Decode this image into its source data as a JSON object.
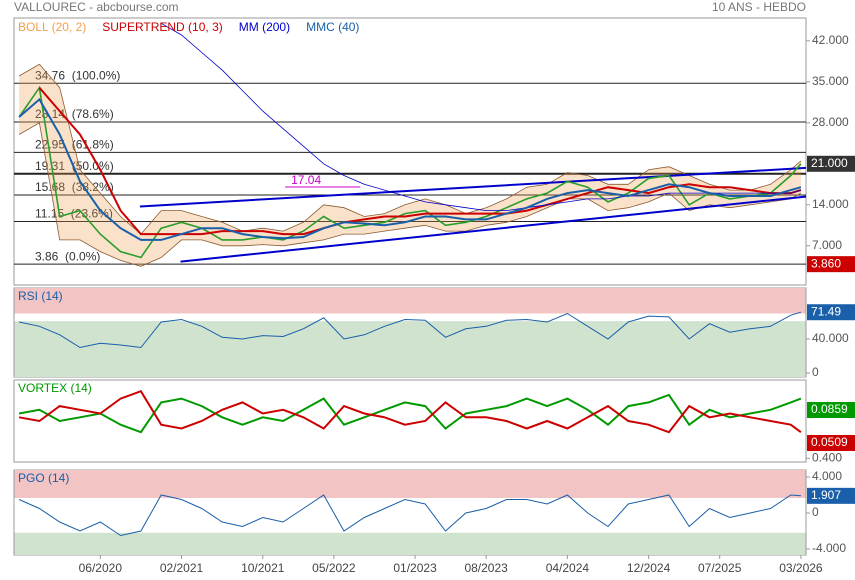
{
  "header": {
    "title": "VALLOUREC - abcbourse.com",
    "period": "10 ANS - HEBDO"
  },
  "chart_data": [
    {
      "type": "line",
      "x": [
        -3,
        -1,
        1,
        3,
        5,
        7,
        9,
        11,
        13,
        15,
        17,
        19,
        21,
        23,
        25,
        27,
        29,
        31,
        33,
        35,
        37,
        39,
        41,
        43,
        45,
        47,
        49,
        51,
        53,
        55,
        57,
        59,
        61,
        63,
        65,
        67,
        69,
        71,
        73,
        74
      ],
      "xlim": [
        -3.5,
        74.5
      ],
      "xticks": [
        {
          "value": 5,
          "label": "06/2020"
        },
        {
          "value": 13,
          "label": "02/2021"
        },
        {
          "value": 21,
          "label": "10/2021"
        },
        {
          "value": 28,
          "label": "05/2022"
        },
        {
          "value": 36,
          "label": "01/2023"
        },
        {
          "value": 43,
          "label": "08/2023"
        },
        {
          "value": 51,
          "label": "04/2024"
        },
        {
          "value": 59,
          "label": "12/2024"
        },
        {
          "value": 66,
          "label": "07/2025"
        },
        {
          "value": 74,
          "label": "03/2026"
        }
      ],
      "ylim": [
        0.3,
        45.9
      ],
      "yticks": [
        {
          "value": 42,
          "label": "42.000"
        },
        {
          "value": 35,
          "label": "35.000"
        },
        {
          "value": 28,
          "label": "28.000"
        },
        {
          "value": 14,
          "label": "14.000"
        },
        {
          "value": 7,
          "label": "7.000"
        }
      ],
      "color": "#2a9d2a",
      "values": [
        29,
        34,
        12,
        13,
        9,
        6,
        5,
        10,
        11,
        10,
        8,
        8,
        8.5,
        8,
        9.5,
        12,
        10,
        10.5,
        11,
        12.5,
        13,
        10.5,
        11,
        12,
        13.5,
        15,
        16,
        18,
        17,
        14.5,
        16,
        18.5,
        19,
        14,
        16,
        15,
        15.5,
        16,
        19,
        21
      ],
      "last_label": "21.000",
      "low_label": "3.860",
      "series": [
        {
          "name": "BOLL (20, 2)",
          "color": "#f0a050",
          "upper": [
            36,
            38,
            34,
            20,
            16,
            12,
            9,
            13,
            13,
            12,
            11,
            9.5,
            10,
            9.5,
            11,
            14,
            13.5,
            12,
            12.5,
            14,
            15,
            14,
            12.5,
            13.5,
            15,
            17,
            17.5,
            19.5,
            19,
            17.5,
            17.5,
            20,
            20.5,
            19,
            17.5,
            16.5,
            16.5,
            17.5,
            20,
            21.5
          ],
          "lower": [
            26,
            28,
            8,
            8,
            6,
            4.5,
            3.5,
            5,
            8,
            8,
            7,
            7,
            7.2,
            7,
            7.5,
            8,
            9,
            9,
            9.5,
            10,
            10.5,
            9.5,
            9.5,
            10.5,
            11,
            12,
            13.5,
            15,
            15,
            13,
            13.5,
            14.5,
            16,
            13,
            14,
            13.5,
            14,
            14.5,
            15,
            16
          ]
        },
        {
          "name": "SUPERTREND (10, 3)",
          "color": "#cc0000",
          "values": [
            null,
            34,
            30,
            26,
            20,
            13,
            9,
            9,
            9,
            9,
            9.5,
            9.5,
            9.5,
            9,
            9,
            10,
            11,
            11.5,
            12,
            12,
            12.5,
            12.5,
            12.5,
            12.5,
            12.5,
            13,
            14,
            15,
            16,
            17,
            16.5,
            16,
            17,
            17.5,
            17,
            17,
            16.5,
            16,
            16,
            16.5
          ]
        },
        {
          "name": "MM (200)",
          "color": "#0000cc",
          "values": [
            null,
            null,
            null,
            null,
            null,
            null,
            null,
            45,
            43,
            40,
            37,
            33.5,
            30,
            27,
            24,
            21,
            19,
            17.5,
            16.5,
            15.5,
            14.5,
            14,
            13.5,
            13,
            13,
            13.5,
            14,
            14.5,
            15,
            15,
            15.5,
            15.5,
            16,
            16,
            16,
            16,
            16,
            16,
            16,
            16.5
          ]
        },
        {
          "name": "MMC (40)",
          "color": "#1a5faa",
          "values": [
            29,
            32,
            26,
            18,
            13,
            10,
            8,
            8,
            9,
            10,
            10,
            9,
            8.5,
            8.3,
            8.5,
            10,
            11,
            10.8,
            10.5,
            11,
            12,
            12,
            11.5,
            11.5,
            12.5,
            13.5,
            15,
            16,
            16.5,
            16,
            15.5,
            16.5,
            17.5,
            17,
            16,
            15.5,
            15.5,
            15.5,
            16.5,
            17
          ]
        }
      ],
      "fib_levels": [
        {
          "value": 34.76,
          "label": "34.76  (100.0%)"
        },
        {
          "value": 28.14,
          "label": "28.14  (78.6%)"
        },
        {
          "value": 22.95,
          "label": "22.95  (61.8%)"
        },
        {
          "value": 19.31,
          "label": "19.31  (50.0%)"
        },
        {
          "value": 15.68,
          "label": "15.68  (38.2%)"
        },
        {
          "value": 11.15,
          "label": "11.15  (23.6%)"
        },
        {
          "value": 3.86,
          "label": "3.86  (0.0%)"
        }
      ],
      "trendlines": [
        {
          "x": [
            8.9,
            74.5
          ],
          "values": [
            13.7,
            20.3
          ]
        },
        {
          "x": [
            12.9,
            74.5
          ],
          "values": [
            4.3,
            15.4
          ]
        }
      ],
      "trend_color": "#0000cc",
      "marker": {
        "value": 17.04,
        "x": [
          23.2,
          30.6
        ],
        "color": "#cc00cc"
      }
    },
    {
      "type": "line",
      "title": "RSI (14)",
      "color": "#1a5faa",
      "ylim": [
        -4.7,
        100
      ],
      "yticks": [
        {
          "value": 40,
          "label": "40.000"
        },
        0
      ],
      "zones": [
        {
          "from": 70,
          "to": 100,
          "color": "#f2c4c4"
        },
        {
          "from": -4.7,
          "to": 61,
          "color": "#cfe3cf"
        }
      ],
      "values": [
        60,
        55,
        45,
        30,
        35,
        33,
        30,
        60,
        63,
        55,
        42,
        40,
        44,
        43,
        52,
        65,
        40,
        45,
        55,
        63,
        62,
        42,
        52,
        55,
        62,
        63,
        60,
        70,
        55,
        40,
        60,
        67,
        66,
        40,
        58,
        48,
        52,
        55,
        68,
        71.49
      ]
    },
    {
      "type": "line",
      "title": "VORTEX (14)",
      "title_color": "#009900",
      "ylim": [
        0.35,
        1.45
      ],
      "yticks": [
        {
          "value": 0.4,
          "label": "0.400"
        }
      ],
      "badges": [
        {
          "label": "0.0859",
          "color": "#009900"
        },
        {
          "label": "0.0509",
          "color": "#cc0000"
        }
      ],
      "series": [
        {
          "color": "#009900",
          "values": [
            1.0,
            1.05,
            0.9,
            0.95,
            1.0,
            0.85,
            0.75,
            1.15,
            1.2,
            1.1,
            0.95,
            0.85,
            0.95,
            0.9,
            1.05,
            1.2,
            0.85,
            0.95,
            1.05,
            1.15,
            1.1,
            0.8,
            1.0,
            1.05,
            1.1,
            1.2,
            1.1,
            1.2,
            1.05,
            0.85,
            1.1,
            1.15,
            1.25,
            0.85,
            1.05,
            0.95,
            1.0,
            1.05,
            1.15,
            1.2
          ]
        },
        {
          "color": "#cc0000",
          "values": [
            0.95,
            0.9,
            1.1,
            1.05,
            1.0,
            1.2,
            1.3,
            0.85,
            0.8,
            0.9,
            1.05,
            1.15,
            1.0,
            1.05,
            0.95,
            0.8,
            1.1,
            1.0,
            0.95,
            0.85,
            0.9,
            1.15,
            0.95,
            0.95,
            0.9,
            0.8,
            0.9,
            0.8,
            0.95,
            1.1,
            0.9,
            0.85,
            0.75,
            1.1,
            0.95,
            1.0,
            0.95,
            0.9,
            0.85,
            0.75
          ]
        }
      ]
    },
    {
      "type": "line",
      "title": "PGO (14)",
      "color": "#1a5faa",
      "ylim": [
        -4.67,
        4.78
      ],
      "yticks": [
        {
          "value": 4,
          "label": "4.000"
        },
        0,
        {
          "value": -4,
          "label": "-4.000"
        }
      ],
      "zones": [
        {
          "from": 1.67,
          "to": 4.78,
          "color": "#f2c4c4"
        },
        {
          "from": -4.67,
          "to": -2.2,
          "color": "#cfe3cf"
        }
      ],
      "values": [
        1.5,
        0.5,
        -1,
        -2,
        -1,
        -2.5,
        -2,
        2,
        1.5,
        0.5,
        -1,
        -1.5,
        -0.5,
        -1,
        0.5,
        2,
        -2,
        -0.5,
        0.5,
        1.5,
        1,
        -2,
        0,
        0.5,
        1.5,
        1.5,
        1,
        2,
        0,
        -1.5,
        1,
        1.5,
        2,
        -1.5,
        0.5,
        -0.5,
        0,
        0.5,
        2,
        1.907
      ]
    }
  ]
}
